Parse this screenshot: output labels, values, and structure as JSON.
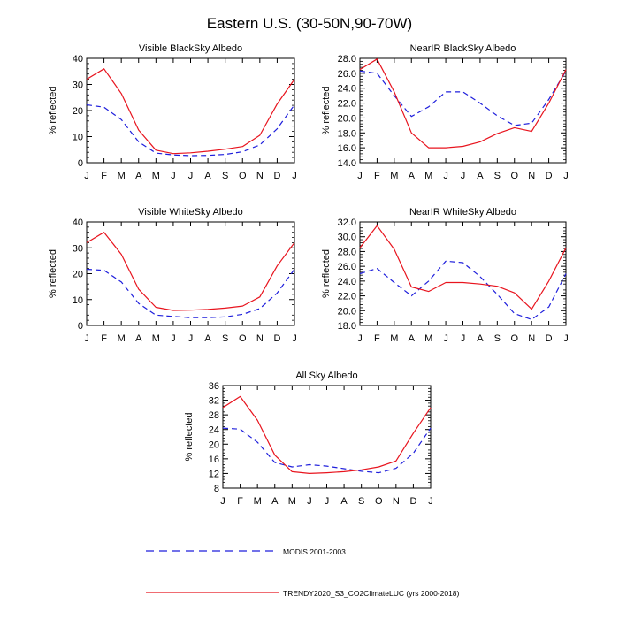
{
  "title": "Eastern U.S. (30-50N,90-70W)",
  "months": [
    "J",
    "F",
    "M",
    "A",
    "M",
    "J",
    "J",
    "A",
    "S",
    "O",
    "N",
    "D",
    "J"
  ],
  "colors": {
    "modis": "#1f1fdc",
    "trendy": "#e8141e",
    "axis": "#000000"
  },
  "legend": {
    "modis_label": "MODIS 2001-2003",
    "trendy_label": "TRENDY2020_S3_CO2ClimateLUC (yrs 2000-2018)"
  },
  "chart_data": [
    {
      "id": "vis-black",
      "type": "line",
      "title": "Visible BlackSky Albedo",
      "ylabel": "% reflected",
      "ylim": [
        0,
        40
      ],
      "yticks": [
        0,
        10,
        20,
        30,
        40
      ],
      "tick_labels": [
        "0",
        "10",
        "20",
        "30",
        "40"
      ],
      "categories": [
        "J",
        "F",
        "M",
        "A",
        "M",
        "J",
        "J",
        "A",
        "S",
        "O",
        "N",
        "D",
        "J"
      ],
      "series": [
        {
          "name": "MODIS 2001-2003",
          "style": "dashed",
          "values": [
            22.2,
            21.3,
            16.5,
            8.0,
            3.7,
            3.0,
            2.7,
            2.8,
            3.2,
            4.2,
            6.8,
            13.0,
            22.2
          ]
        },
        {
          "name": "TRENDY2020_S3_CO2ClimateLUC (yrs 2000-2018)",
          "style": "solid",
          "values": [
            32.0,
            36.0,
            26.5,
            12.5,
            4.8,
            3.5,
            3.8,
            4.4,
            5.2,
            6.2,
            10.5,
            22.5,
            32.0
          ]
        }
      ]
    },
    {
      "id": "nir-black",
      "type": "line",
      "title": "NearIR BlackSky Albedo",
      "ylabel": "% reflected",
      "ylim": [
        14,
        28
      ],
      "yticks": [
        14,
        16,
        18,
        20,
        22,
        24,
        26,
        28
      ],
      "tick_labels": [
        "14.0",
        "16.0",
        "18.0",
        "20.0",
        "22.0",
        "24.0",
        "26.0",
        "28.0"
      ],
      "categories": [
        "J",
        "F",
        "M",
        "A",
        "M",
        "J",
        "J",
        "A",
        "S",
        "O",
        "N",
        "D",
        "J"
      ],
      "series": [
        {
          "name": "MODIS 2001-2003",
          "style": "dashed",
          "values": [
            26.3,
            26.0,
            23.0,
            20.2,
            21.5,
            23.5,
            23.5,
            22.0,
            20.3,
            19.0,
            19.3,
            22.5,
            26.3
          ]
        },
        {
          "name": "TRENDY2020_S3_CO2ClimateLUC (yrs 2000-2018)",
          "style": "solid",
          "values": [
            26.5,
            27.9,
            23.5,
            18.0,
            16.0,
            16.0,
            16.2,
            16.8,
            17.9,
            18.7,
            18.2,
            22.0,
            26.5
          ]
        }
      ]
    },
    {
      "id": "vis-white",
      "type": "line",
      "title": "Visible WhiteSky Albedo",
      "ylabel": "% reflected",
      "ylim": [
        0,
        40
      ],
      "yticks": [
        0,
        10,
        20,
        30,
        40
      ],
      "tick_labels": [
        "0",
        "10",
        "20",
        "30",
        "40"
      ],
      "categories": [
        "J",
        "F",
        "M",
        "A",
        "M",
        "J",
        "J",
        "A",
        "S",
        "O",
        "N",
        "D",
        "J"
      ],
      "series": [
        {
          "name": "MODIS 2001-2003",
          "style": "dashed",
          "values": [
            21.7,
            21.3,
            16.8,
            8.5,
            4.0,
            3.5,
            3.0,
            3.0,
            3.3,
            4.3,
            6.5,
            12.5,
            21.7
          ]
        },
        {
          "name": "TRENDY2020_S3_CO2ClimateLUC (yrs 2000-2018)",
          "style": "solid",
          "values": [
            32.0,
            36.0,
            27.5,
            14.0,
            7.0,
            5.8,
            5.9,
            6.2,
            6.7,
            7.5,
            11.0,
            23.0,
            32.0
          ]
        }
      ]
    },
    {
      "id": "nir-white",
      "type": "line",
      "title": "NearIR WhiteSky Albedo",
      "ylabel": "% reflected",
      "ylim": [
        18,
        32
      ],
      "yticks": [
        18,
        20,
        22,
        24,
        26,
        28,
        30,
        32
      ],
      "tick_labels": [
        "18.0",
        "20.0",
        "22.0",
        "24.0",
        "26.0",
        "28.0",
        "30.0",
        "32.0"
      ],
      "categories": [
        "J",
        "F",
        "M",
        "A",
        "M",
        "J",
        "J",
        "A",
        "S",
        "O",
        "N",
        "D",
        "J"
      ],
      "series": [
        {
          "name": "MODIS 2001-2003",
          "style": "dashed",
          "values": [
            25.0,
            25.7,
            23.8,
            22.0,
            24.0,
            26.7,
            26.5,
            24.6,
            22.2,
            19.6,
            18.8,
            20.5,
            25.0
          ]
        },
        {
          "name": "TRENDY2020_S3_CO2ClimateLUC (yrs 2000-2018)",
          "style": "solid",
          "values": [
            28.5,
            31.5,
            28.3,
            23.2,
            22.6,
            23.8,
            23.8,
            23.6,
            23.3,
            22.4,
            20.2,
            24.0,
            28.5
          ]
        }
      ]
    },
    {
      "id": "all-sky",
      "type": "line",
      "title": "All Sky Albedo",
      "ylabel": "% reflected",
      "ylim": [
        8,
        36
      ],
      "yticks": [
        8,
        12,
        16,
        20,
        24,
        28,
        32,
        36
      ],
      "tick_labels": [
        "8",
        "12",
        "16",
        "20",
        "24",
        "28",
        "32",
        "36"
      ],
      "categories": [
        "J",
        "F",
        "M",
        "A",
        "M",
        "J",
        "J",
        "A",
        "S",
        "O",
        "N",
        "D",
        "J"
      ],
      "series": [
        {
          "name": "MODIS 2001-2003",
          "style": "dashed",
          "values": [
            24.4,
            24.1,
            20.5,
            15.0,
            13.8,
            14.4,
            14.0,
            13.3,
            12.6,
            12.2,
            13.4,
            17.5,
            24.4
          ]
        },
        {
          "name": "TRENDY2020_S3_CO2ClimateLUC (yrs 2000-2018)",
          "style": "solid",
          "values": [
            30.0,
            33.0,
            26.5,
            17.0,
            12.5,
            12.0,
            12.2,
            12.5,
            13.0,
            13.8,
            15.4,
            23.0,
            30.0
          ]
        }
      ]
    }
  ]
}
